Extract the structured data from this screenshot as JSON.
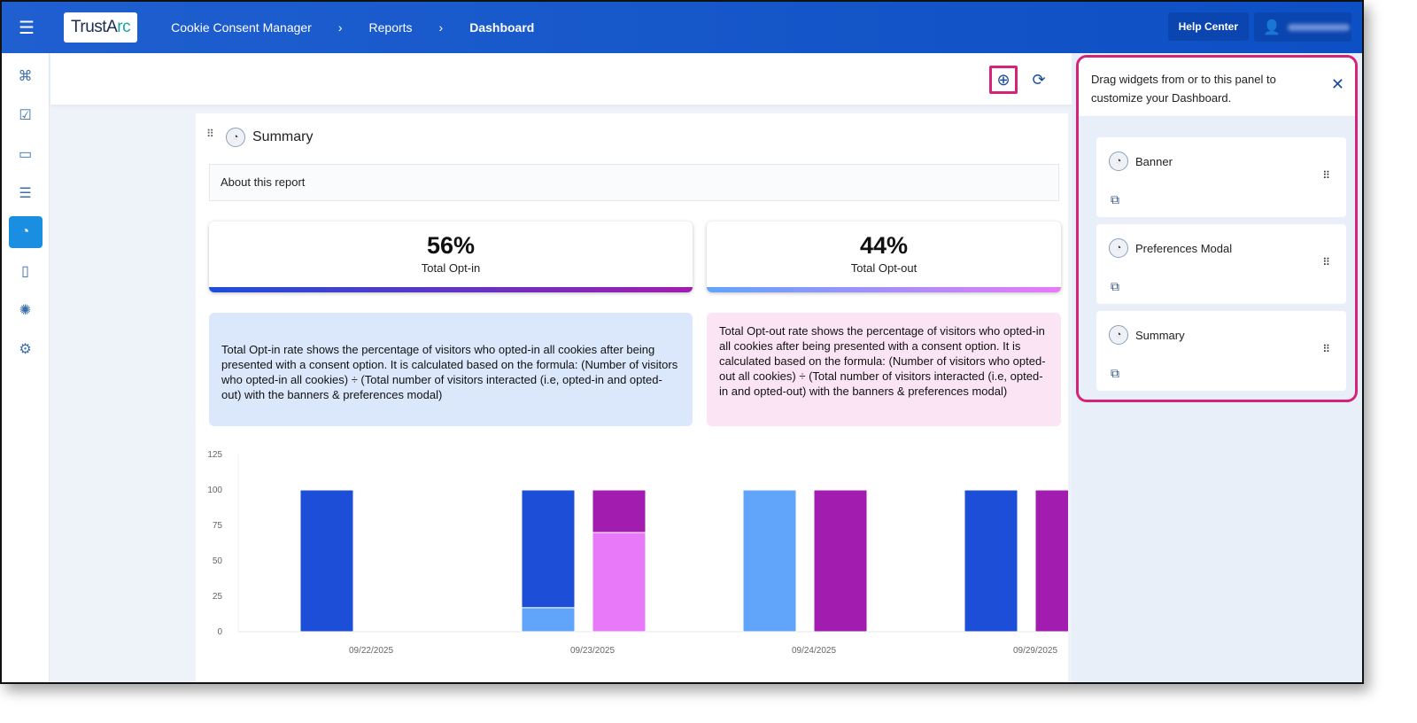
{
  "header": {
    "logo": "TrustArc",
    "breadcrumbs": [
      "Cookie Consent Manager",
      "Reports",
      "Dashboard"
    ],
    "help_label": "Help Center"
  },
  "sidebar": {
    "items": [
      {
        "icon": "network-icon",
        "glyph": "⌘"
      },
      {
        "icon": "clipboard-check-icon",
        "glyph": "☑"
      },
      {
        "icon": "monitor-icon",
        "glyph": "▭"
      },
      {
        "icon": "user-list-icon",
        "glyph": "☰"
      },
      {
        "icon": "cookie-icon",
        "glyph": "◔",
        "active": true
      },
      {
        "icon": "document-settings-icon",
        "glyph": "▯"
      },
      {
        "icon": "brain-icon",
        "glyph": "✺"
      },
      {
        "icon": "gear-icon",
        "glyph": "⚙"
      }
    ]
  },
  "toolbar": {
    "add_icon": "⊕",
    "refresh_icon": "⟳"
  },
  "summary": {
    "title": "Summary",
    "about": "About this report",
    "optin": {
      "value": "56%",
      "label": "Total Opt-in",
      "description": "Total Opt-in rate shows the percentage of visitors who opted-in all cookies after being presented with a consent option. It is calculated based on the formula: (Number of visitors who opted-in all cookies) ÷ (Total number of visitors interacted (i.e, opted-in and opted-out) with the banners & preferences modal)"
    },
    "optout": {
      "value": "44%",
      "label": "Total Opt-out",
      "description": "Total Opt-out rate shows the percentage of visitors who opted-in all cookies after being presented with a consent option. It is calculated based on the formula: (Number of visitors who opted-out all cookies) ÷ (Total number of visitors interacted (i.e, opted-in and opted-out) with the banners & preferences modal)"
    }
  },
  "panel": {
    "text": "Drag widgets from or to this panel to customize your Dashboard.",
    "items": [
      "Banner",
      "Preferences Modal",
      "Summary"
    ]
  },
  "chart_data": {
    "type": "bar",
    "stacked": true,
    "categories": [
      "09/22/2025",
      "09/23/2025",
      "09/24/2025",
      "09/29/2025"
    ],
    "ylim": [
      0,
      125
    ],
    "yticks": [
      0,
      25,
      50,
      75,
      100,
      125
    ],
    "grid": false,
    "stacks": [
      {
        "position": "left",
        "series": [
          {
            "color": "#60a5fa",
            "values": [
              0,
              17,
              100,
              0
            ]
          },
          {
            "color": "#1d4ed8",
            "values": [
              100,
              83,
              0,
              100
            ]
          }
        ]
      },
      {
        "position": "right",
        "series": [
          {
            "color": "#e879f9",
            "values": [
              0,
              70,
              0,
              0
            ]
          },
          {
            "color": "#a21caf",
            "values": [
              0,
              30,
              100,
              100
            ]
          }
        ]
      }
    ]
  }
}
